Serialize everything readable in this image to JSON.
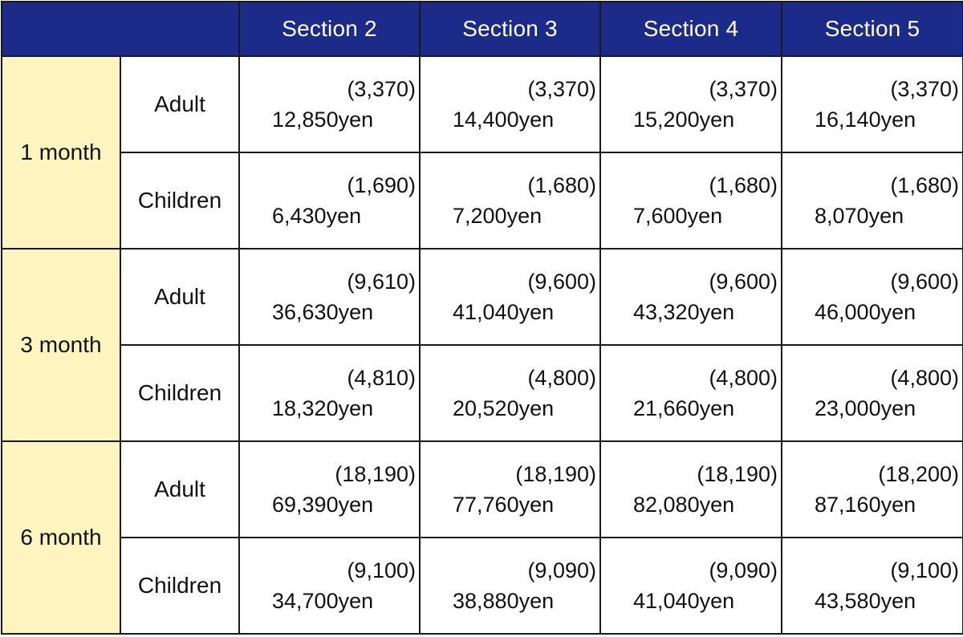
{
  "header": {
    "corner": "",
    "sections": [
      "Section 2",
      "Section 3",
      "Section 4",
      "Section 5"
    ]
  },
  "groups": [
    {
      "period": "1 month",
      "rows": [
        {
          "kind": "Adult",
          "cells": [
            {
              "paren": "(3,370)",
              "price": "12,850yen"
            },
            {
              "paren": "(3,370)",
              "price": "14,400yen"
            },
            {
              "paren": "(3,370)",
              "price": "15,200yen"
            },
            {
              "paren": "(3,370)",
              "price": "16,140yen"
            }
          ]
        },
        {
          "kind": "Children",
          "cells": [
            {
              "paren": "(1,690)",
              "price": "6,430yen"
            },
            {
              "paren": "(1,680)",
              "price": "7,200yen"
            },
            {
              "paren": "(1,680)",
              "price": "7,600yen"
            },
            {
              "paren": "(1,680)",
              "price": "8,070yen"
            }
          ]
        }
      ]
    },
    {
      "period": "3 month",
      "rows": [
        {
          "kind": "Adult",
          "cells": [
            {
              "paren": "(9,610)",
              "price": "36,630yen"
            },
            {
              "paren": "(9,600)",
              "price": "41,040yen"
            },
            {
              "paren": "(9,600)",
              "price": "43,320yen"
            },
            {
              "paren": "(9,600)",
              "price": "46,000yen"
            }
          ]
        },
        {
          "kind": "Children",
          "cells": [
            {
              "paren": "(4,810)",
              "price": "18,320yen"
            },
            {
              "paren": "(4,800)",
              "price": "20,520yen"
            },
            {
              "paren": "(4,800)",
              "price": "21,660yen"
            },
            {
              "paren": "(4,800)",
              "price": "23,000yen"
            }
          ]
        }
      ]
    },
    {
      "period": "6 month",
      "rows": [
        {
          "kind": "Adult",
          "cells": [
            {
              "paren": "(18,190)",
              "price": "69,390yen"
            },
            {
              "paren": "(18,190)",
              "price": "77,760yen"
            },
            {
              "paren": "(18,190)",
              "price": "82,080yen"
            },
            {
              "paren": "(18,200)",
              "price": "87,160yen"
            }
          ]
        },
        {
          "kind": "Children",
          "cells": [
            {
              "paren": "(9,100)",
              "price": "34,700yen"
            },
            {
              "paren": "(9,090)",
              "price": "38,880yen"
            },
            {
              "paren": "(9,090)",
              "price": "41,040yen"
            },
            {
              "paren": "(9,100)",
              "price": "43,580yen"
            }
          ]
        }
      ]
    }
  ],
  "colors": {
    "header_bg": "#1c2a8a",
    "header_text": "#ffffff",
    "period_bg": "#fdf4bf",
    "border": "#1a1a1a"
  }
}
